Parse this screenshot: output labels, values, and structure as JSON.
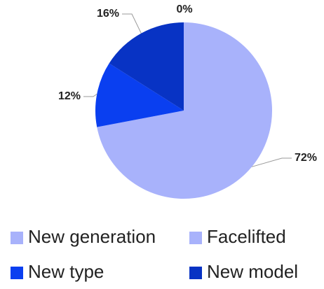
{
  "chart_data": {
    "type": "pie",
    "categories": [
      "New generation",
      "Facelifted",
      "New type",
      "New model"
    ],
    "values": [
      72,
      0,
      12,
      16
    ],
    "value_labels": [
      "72%",
      "0%",
      "12%",
      "16%"
    ],
    "colors": [
      "#a8b2fb",
      "#a8b2fb",
      "#0a3ff0",
      "#0833c4"
    ],
    "legend": "bottom"
  }
}
